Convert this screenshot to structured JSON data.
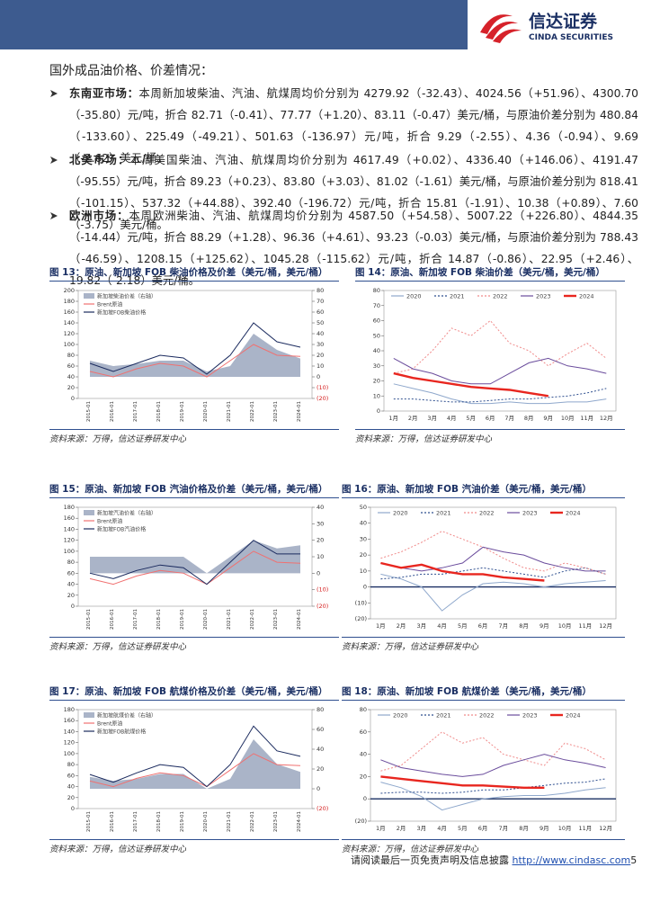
{
  "header": {
    "company": "信达证券",
    "company_en": "CINDA SECURITIES"
  },
  "section_title": "国外成品油价格、价差情况：",
  "paragraphs": [
    {
      "label": "东南亚市场：",
      "text": "本周新加坡柴油、汽油、航煤周均价分别为 4279.92（-32.43）、4024.56（+51.96）、4300.70（-35.80）元/吨，折合 82.71（-0.41）、77.77（+1.20）、83.11（-0.47）美元/桶，与原油价差分别为 480.84（-133.60）、225.49（-49.21）、501.63（-136.97）元/吨，折合 9.29（-2.55）、4.36（-0.94）、9.69（-2.62）美元/桶。"
    },
    {
      "label": "北美市场：",
      "text": "本周美国柴油、汽油、航煤周均价分别为 4617.49（+0.02）、4336.40（+146.06）、4191.47（-95.55）元/吨，折合 89.23（+0.23）、83.80（+3.03）、81.02（-1.61）美元/桶，与原油价差分别为 818.41（-101.15）、537.32（+44.88）、392.40（-196.72）元/吨，折合 15.81（-1.91）、10.38（+0.89）、7.60（-3.75）美元/桶。"
    },
    {
      "label": "欧洲市场：",
      "text": "本周欧洲柴油、汽油、航煤周均价分别为 4587.50（+54.58）、5007.22（+226.80）、4844.35（-14.44）元/吨，折合 88.29（+1.28）、96.36（+4.61）、93.23（-0.03）美元/桶，与原油价差分别为 788.43（-46.59）、1208.15（+125.62）、1045.28（-115.62）元/吨，折合 14.87（-0.86）、22.95（+2.46）、19.82（-2.18）美元/桶。"
    }
  ],
  "chart_data": [
    {
      "type": "line",
      "title": "图 13：原油、新加坡 FOB 柴油价格及价差（美元/桶，美元/桶）",
      "source": "资料来源：万得，信达证券研发中心",
      "legend": "upper-left",
      "categories": [
        "2015-01",
        "2016-01",
        "2017-01",
        "2018-01",
        "2019-01",
        "2020-01",
        "2021-01",
        "2022-01",
        "2023-01",
        "2024-01"
      ],
      "ylim": [
        0,
        200
      ],
      "yticks": [
        0,
        20,
        40,
        60,
        80,
        100,
        120,
        140,
        160,
        180,
        200
      ],
      "y2lim": [
        -20,
        80
      ],
      "y2ticks": [
        {
          "value": -20,
          "label": "(20)"
        },
        {
          "value": -10,
          "label": "(10)"
        },
        0,
        10,
        20,
        30,
        40,
        50,
        60,
        70,
        80
      ],
      "series": [
        {
          "name": "新加坡柴油价差（右轴）",
          "color": "#aab4c8",
          "style": "area",
          "axis": "y2",
          "values": [
            15,
            10,
            12,
            15,
            15,
            5,
            10,
            40,
            25,
            17
          ]
        },
        {
          "name": "Brent原油",
          "color": "#f07070",
          "values": [
            50,
            40,
            55,
            65,
            60,
            40,
            70,
            100,
            80,
            78
          ]
        },
        {
          "name": "新加坡FOB柴油价格",
          "color": "#1a2a5e",
          "values": [
            65,
            50,
            65,
            80,
            75,
            45,
            80,
            140,
            105,
            95
          ]
        }
      ]
    },
    {
      "type": "line",
      "title": "图 14：原油、新加坡 FOB 柴油价差（美元/桶，美元/桶）",
      "source": "资料来源：万得，信达证券研发中心",
      "legend": "top",
      "categories": [
        "1月",
        "2月",
        "3月",
        "4月",
        "5月",
        "6月",
        "7月",
        "8月",
        "9月",
        "10月",
        "11月",
        "12月"
      ],
      "ylim": [
        0,
        80
      ],
      "yticks": [
        0,
        10,
        20,
        30,
        40,
        50,
        60,
        70,
        80
      ],
      "series": [
        {
          "name": "2020",
          "color": "#8fa8cc",
          "values": [
            18,
            15,
            12,
            8,
            5,
            5,
            6,
            5,
            5,
            6,
            6,
            8
          ]
        },
        {
          "name": "2021",
          "color": "#2f4f8f",
          "style": "dashed",
          "values": [
            8,
            8,
            7,
            6,
            6,
            7,
            8,
            8,
            9,
            10,
            12,
            15
          ]
        },
        {
          "name": "2022",
          "color": "#f08a8a",
          "style": "dashed",
          "values": [
            25,
            28,
            40,
            55,
            50,
            60,
            45,
            40,
            30,
            38,
            45,
            35
          ]
        },
        {
          "name": "2023",
          "color": "#6a4c9c",
          "values": [
            35,
            28,
            25,
            20,
            18,
            18,
            25,
            32,
            35,
            30,
            28,
            25
          ]
        },
        {
          "name": "2024",
          "color": "#e8261f",
          "style": "bold",
          "values": [
            25,
            22,
            20,
            18,
            16,
            15,
            14,
            12,
            10,
            null,
            null,
            null
          ]
        }
      ]
    },
    {
      "type": "line",
      "title": "图 15：原油、新加坡 FOB 汽油价格及价差（美元/桶，美元/桶）",
      "source": "资料来源：万得，信达证券研发中心",
      "legend": "upper-left",
      "categories": [
        "2015-01",
        "2016-01",
        "2017-01",
        "2018-01",
        "2019-01",
        "2020-01",
        "2021-01",
        "2022-01",
        "2023-01",
        "2024-01"
      ],
      "ylim": [
        0,
        180
      ],
      "yticks": [
        0,
        20,
        40,
        60,
        80,
        100,
        120,
        140,
        160,
        180
      ],
      "y2lim": [
        -20,
        40
      ],
      "y2ticks": [
        {
          "value": -20,
          "label": "(20)"
        },
        {
          "value": -10,
          "label": "(10)"
        },
        0,
        10,
        20,
        30,
        40
      ],
      "series": [
        {
          "name": "新加坡汽油价差（右轴）",
          "color": "#aab4c8",
          "style": "area",
          "axis": "y2",
          "values": [
            10,
            10,
            10,
            10,
            10,
            0,
            10,
            20,
            15,
            17
          ]
        },
        {
          "name": "Brent原油",
          "color": "#f07070",
          "values": [
            50,
            40,
            55,
            65,
            60,
            40,
            70,
            100,
            80,
            78
          ]
        },
        {
          "name": "新加坡FOB汽油价格",
          "color": "#1a2a5e",
          "values": [
            60,
            50,
            65,
            75,
            70,
            40,
            80,
            120,
            95,
            95
          ]
        }
      ]
    },
    {
      "type": "line",
      "title": "图 16：原油、新加坡 FOB 汽油价差（美元/桶，美元/桶）",
      "source": "资料来源：万得，信达证券研发中心",
      "legend": "top",
      "categories": [
        "1月",
        "2月",
        "3月",
        "4月",
        "5月",
        "6月",
        "7月",
        "8月",
        "9月",
        "10月",
        "11月",
        "12月"
      ],
      "ylim": [
        -20,
        50
      ],
      "yticks": [
        {
          "value": -20,
          "label": "(20)"
        },
        {
          "value": -10,
          "label": "(10)"
        },
        0,
        10,
        20,
        30,
        40,
        50
      ],
      "series": [
        {
          "name": "2020",
          "color": "#8fa8cc",
          "values": [
            8,
            5,
            0,
            -15,
            -5,
            2,
            3,
            2,
            0,
            2,
            3,
            4
          ]
        },
        {
          "name": "2021",
          "color": "#2f4f8f",
          "style": "dashed",
          "values": [
            5,
            6,
            8,
            8,
            10,
            12,
            10,
            8,
            6,
            10,
            12,
            8
          ]
        },
        {
          "name": "2022",
          "color": "#f08a8a",
          "style": "dashed",
          "values": [
            18,
            22,
            28,
            35,
            30,
            25,
            18,
            12,
            10,
            15,
            12,
            8
          ]
        },
        {
          "name": "2023",
          "color": "#6a4c9c",
          "values": [
            15,
            12,
            10,
            12,
            15,
            25,
            22,
            20,
            15,
            12,
            10,
            10
          ]
        },
        {
          "name": "2024",
          "color": "#e8261f",
          "style": "bold",
          "values": [
            15,
            12,
            14,
            10,
            8,
            8,
            6,
            5,
            4,
            null,
            null,
            null
          ]
        }
      ]
    },
    {
      "type": "line",
      "title": "图 17：原油、新加坡 FOB 航煤价格及价差（美元/桶，美元/桶）",
      "source": "资料来源：万得，信达证券研发中心",
      "legend": "upper-left",
      "categories": [
        "2015-01",
        "2016-01",
        "2017-01",
        "2018-01",
        "2019-01",
        "2020-01",
        "2021-01",
        "2022-01",
        "2023-01",
        "2024-01"
      ],
      "ylim": [
        0,
        180
      ],
      "yticks": [
        0,
        20,
        40,
        60,
        80,
        100,
        120,
        140,
        160,
        180
      ],
      "y2lim": [
        -20,
        80
      ],
      "y2ticks": [
        {
          "value": -20,
          "label": "(20)"
        },
        0,
        20,
        40,
        60,
        80
      ],
      "series": [
        {
          "name": "新加坡航煤价差（右轴）",
          "color": "#aab4c8",
          "style": "area",
          "axis": "y2",
          "values": [
            12,
            8,
            10,
            15,
            15,
            0,
            10,
            50,
            25,
            17
          ]
        },
        {
          "name": "Brent原油",
          "color": "#f07070",
          "values": [
            50,
            40,
            55,
            65,
            60,
            40,
            70,
            100,
            80,
            78
          ]
        },
        {
          "name": "新加坡FOB航煤价格",
          "color": "#1a2a5e",
          "values": [
            62,
            48,
            65,
            80,
            75,
            40,
            80,
            150,
            105,
            95
          ]
        }
      ]
    },
    {
      "type": "line",
      "title": "图 18：原油、新加坡 FOB 航煤价差（美元/桶，美元/桶）",
      "source": "资料来源：万得，信达证券研发中心",
      "legend": "top",
      "categories": [
        "1月",
        "2月",
        "3月",
        "4月",
        "5月",
        "6月",
        "7月",
        "8月",
        "9月",
        "10月",
        "11月",
        "12月"
      ],
      "ylim": [
        -20,
        80
      ],
      "yticks": [
        {
          "value": -20,
          "label": "(20)"
        },
        0,
        20,
        40,
        60,
        80
      ],
      "series": [
        {
          "name": "2020",
          "color": "#8fa8cc",
          "values": [
            15,
            10,
            2,
            -10,
            -5,
            0,
            2,
            3,
            3,
            5,
            8,
            10
          ]
        },
        {
          "name": "2021",
          "color": "#2f4f8f",
          "style": "dashed",
          "values": [
            5,
            6,
            6,
            5,
            6,
            8,
            8,
            10,
            12,
            14,
            15,
            18
          ]
        },
        {
          "name": "2022",
          "color": "#f08a8a",
          "style": "dashed",
          "values": [
            25,
            30,
            45,
            60,
            50,
            55,
            40,
            35,
            30,
            50,
            45,
            35
          ]
        },
        {
          "name": "2023",
          "color": "#6a4c9c",
          "values": [
            35,
            28,
            25,
            22,
            20,
            22,
            30,
            35,
            40,
            35,
            32,
            28
          ]
        },
        {
          "name": "2024",
          "color": "#e8261f",
          "style": "bold",
          "values": [
            20,
            18,
            16,
            14,
            12,
            12,
            11,
            10,
            10,
            null,
            null,
            null
          ]
        }
      ]
    }
  ],
  "footer": {
    "disclaimer": "请阅读最后一页免责声明及信息披露",
    "url": "http://www.cindasc.com",
    "page": 5
  }
}
